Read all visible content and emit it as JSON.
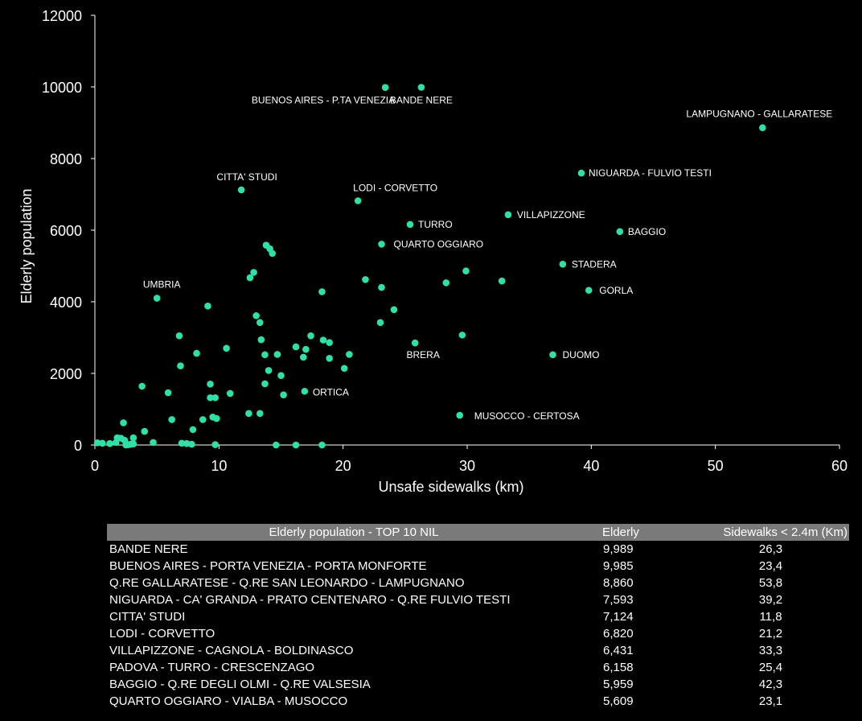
{
  "chart_data": {
    "type": "scatter",
    "xlabel": "Unsafe sidewalks (km)",
    "ylabel": "Elderly population",
    "xlim": [
      0,
      60
    ],
    "ylim": [
      0,
      12000
    ],
    "xticks": [
      0,
      10,
      20,
      30,
      40,
      50,
      60
    ],
    "yticks": [
      0,
      2000,
      4000,
      6000,
      8000,
      10000,
      12000
    ],
    "grid": false,
    "point_color": "#2fe0a8",
    "points": [
      {
        "x": 23.4,
        "y": 9985,
        "label": "BUENOS AIRES - P.TA VENEZIA",
        "anchor": "end",
        "dx": 12,
        "dy": 20
      },
      {
        "x": 26.3,
        "y": 9989,
        "label": "BANDE NERE",
        "anchor": "middle",
        "dx": 0,
        "dy": 20
      },
      {
        "x": 53.8,
        "y": 8860,
        "label": "LAMPUGNANO - GALLARATESE",
        "anchor": "middle",
        "dx": -4,
        "dy": -13
      },
      {
        "x": 39.2,
        "y": 7593,
        "label": "NIGUARDA - FULVIO TESTI",
        "anchor": "start",
        "dx": 9,
        "dy": 4
      },
      {
        "x": 11.8,
        "y": 7124,
        "label": "CITTA' STUDI",
        "anchor": "middle",
        "dx": 7,
        "dy": -12
      },
      {
        "x": 21.2,
        "y": 6820,
        "label": "LODI - CORVETTO",
        "anchor": "start",
        "dx": -6,
        "dy": -12
      },
      {
        "x": 33.3,
        "y": 6431,
        "label": "VILLAPIZZONE",
        "anchor": "start",
        "dx": 11,
        "dy": 4
      },
      {
        "x": 25.4,
        "y": 6158,
        "label": "TURRO",
        "anchor": "start",
        "dx": 10,
        "dy": 4
      },
      {
        "x": 42.3,
        "y": 5959,
        "label": "BAGGIO",
        "anchor": "start",
        "dx": 10,
        "dy": 4
      },
      {
        "x": 23.1,
        "y": 5609,
        "label": "QUARTO OGGIARO",
        "anchor": "start",
        "dx": 15,
        "dy": 4
      },
      {
        "x": 37.7,
        "y": 5050,
        "label": "STADERA",
        "anchor": "start",
        "dx": 11,
        "dy": 4
      },
      {
        "x": 39.8,
        "y": 4320,
        "label": "GORLA",
        "anchor": "start",
        "dx": 13,
        "dy": 4
      },
      {
        "x": 5.0,
        "y": 4100,
        "label": "UMBRIA",
        "anchor": "middle",
        "dx": 6,
        "dy": -13
      },
      {
        "x": 25.8,
        "y": 2850,
        "label": "BRERA",
        "anchor": "middle",
        "dx": 10,
        "dy": 19
      },
      {
        "x": 36.9,
        "y": 2520,
        "label": "DUOMO",
        "anchor": "start",
        "dx": 12,
        "dy": 4
      },
      {
        "x": 16.9,
        "y": 1500,
        "label": "ORTICA",
        "anchor": "start",
        "dx": 10,
        "dy": 5
      },
      {
        "x": 29.4,
        "y": 830,
        "label": "MUSOCCO - CERTOSA",
        "anchor": "start",
        "dx": 18,
        "dy": 5
      },
      {
        "x": 13.8,
        "y": 5580
      },
      {
        "x": 14.1,
        "y": 5480
      },
      {
        "x": 14.3,
        "y": 5350
      },
      {
        "x": 12.8,
        "y": 4820
      },
      {
        "x": 12.5,
        "y": 4670
      },
      {
        "x": 21.8,
        "y": 4620
      },
      {
        "x": 23.1,
        "y": 4400
      },
      {
        "x": 28.3,
        "y": 4530
      },
      {
        "x": 29.9,
        "y": 4860
      },
      {
        "x": 32.8,
        "y": 4580
      },
      {
        "x": 18.3,
        "y": 4280
      },
      {
        "x": 9.1,
        "y": 3880
      },
      {
        "x": 24.1,
        "y": 3780
      },
      {
        "x": 13.0,
        "y": 3610
      },
      {
        "x": 13.3,
        "y": 3420
      },
      {
        "x": 23.0,
        "y": 3420
      },
      {
        "x": 29.6,
        "y": 3070
      },
      {
        "x": 6.8,
        "y": 3050
      },
      {
        "x": 17.4,
        "y": 3050
      },
      {
        "x": 13.4,
        "y": 2940
      },
      {
        "x": 18.4,
        "y": 2930
      },
      {
        "x": 18.9,
        "y": 2860
      },
      {
        "x": 16.2,
        "y": 2740
      },
      {
        "x": 10.6,
        "y": 2700
      },
      {
        "x": 17.0,
        "y": 2670
      },
      {
        "x": 8.2,
        "y": 2560
      },
      {
        "x": 13.7,
        "y": 2520
      },
      {
        "x": 14.7,
        "y": 2530
      },
      {
        "x": 20.5,
        "y": 2530
      },
      {
        "x": 16.8,
        "y": 2450
      },
      {
        "x": 18.9,
        "y": 2420
      },
      {
        "x": 6.9,
        "y": 2210
      },
      {
        "x": 20.1,
        "y": 2140
      },
      {
        "x": 14.0,
        "y": 2080
      },
      {
        "x": 15.0,
        "y": 1940
      },
      {
        "x": 9.3,
        "y": 1700
      },
      {
        "x": 13.7,
        "y": 1710
      },
      {
        "x": 3.8,
        "y": 1640
      },
      {
        "x": 5.9,
        "y": 1460
      },
      {
        "x": 10.9,
        "y": 1440
      },
      {
        "x": 15.2,
        "y": 1400
      },
      {
        "x": 9.3,
        "y": 1320
      },
      {
        "x": 9.7,
        "y": 1320
      },
      {
        "x": 12.4,
        "y": 880
      },
      {
        "x": 13.3,
        "y": 880
      },
      {
        "x": 9.5,
        "y": 780
      },
      {
        "x": 9.8,
        "y": 740
      },
      {
        "x": 6.2,
        "y": 710
      },
      {
        "x": 8.7,
        "y": 710
      },
      {
        "x": 2.3,
        "y": 620
      },
      {
        "x": 7.9,
        "y": 430
      },
      {
        "x": 4.0,
        "y": 380
      },
      {
        "x": 1.8,
        "y": 200
      },
      {
        "x": 2.1,
        "y": 190
      },
      {
        "x": 3.1,
        "y": 200
      },
      {
        "x": 4.7,
        "y": 70
      },
      {
        "x": 2.4,
        "y": 130
      },
      {
        "x": 0.2,
        "y": 60
      },
      {
        "x": 0.6,
        "y": 50
      },
      {
        "x": 1.2,
        "y": 40
      },
      {
        "x": 1.7,
        "y": 70
      },
      {
        "x": 2.5,
        "y": 0
      },
      {
        "x": 2.7,
        "y": 10
      },
      {
        "x": 2.9,
        "y": 20
      },
      {
        "x": 3.1,
        "y": 30
      },
      {
        "x": 7.0,
        "y": 50
      },
      {
        "x": 7.4,
        "y": 40
      },
      {
        "x": 7.8,
        "y": 20
      },
      {
        "x": 9.7,
        "y": 10
      },
      {
        "x": 14.6,
        "y": 0
      },
      {
        "x": 16.2,
        "y": 0
      },
      {
        "x": 18.3,
        "y": 0
      }
    ]
  },
  "table": {
    "headers": [
      "Elderly population - TOP 10 NIL",
      "Elderly",
      "Sidewalks < 2.4m (Km)"
    ],
    "rows": [
      [
        "BANDE NERE",
        "9,989",
        "26,3"
      ],
      [
        "BUENOS AIRES - PORTA VENEZIA - PORTA MONFORTE",
        "9,985",
        "23,4"
      ],
      [
        "Q.RE GALLARATESE - Q.RE SAN LEONARDO - LAMPUGNANO",
        "8,860",
        "53,8"
      ],
      [
        "NIGUARDA - CA' GRANDA - PRATO CENTENARO - Q.RE FULVIO TESTI",
        "7,593",
        "39,2"
      ],
      [
        "CITTA' STUDI",
        "7,124",
        "11,8"
      ],
      [
        "LODI - CORVETTO",
        "6,820",
        "21,2"
      ],
      [
        "VILLAPIZZONE - CAGNOLA - BOLDINASCO",
        "6,431",
        "33,3"
      ],
      [
        "PADOVA - TURRO - CRESCENZAGO",
        "6,158",
        "25,4"
      ],
      [
        "BAGGIO - Q.RE DEGLI OLMI - Q.RE VALSESIA",
        "5,959",
        "42,3"
      ],
      [
        "QUARTO OGGIARO - VIALBA - MUSOCCO",
        "5,609",
        "23,1"
      ]
    ]
  }
}
